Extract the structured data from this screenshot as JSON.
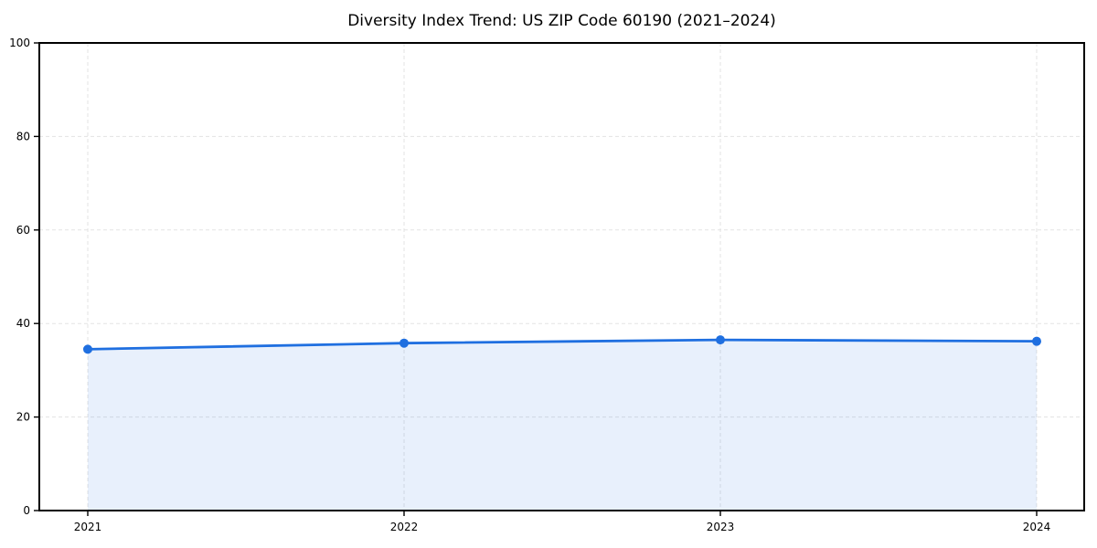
{
  "chart_data": {
    "type": "area",
    "title": "Diversity Index Trend: US ZIP Code 60190 (2021–2024)",
    "categories": [
      "2021",
      "2022",
      "2023",
      "2024"
    ],
    "series": [
      {
        "name": "Diversity Index",
        "values": [
          34.5,
          35.8,
          36.5,
          36.2
        ]
      }
    ],
    "xlabel": "",
    "ylabel": "",
    "ylim": [
      0,
      100
    ],
    "yticks": [
      0,
      20,
      40,
      60,
      80,
      100
    ],
    "grid": true,
    "grid_style": "dashed",
    "legend_position": "none",
    "marker": "circle",
    "colors": {
      "line": "#1f6fe0",
      "marker": "#1f6fe0",
      "fill": "rgba(31,111,224,0.10)",
      "grid": "#e3e3e3",
      "axis": "#000000",
      "tick_text": "#000000",
      "background": "#ffffff"
    }
  }
}
